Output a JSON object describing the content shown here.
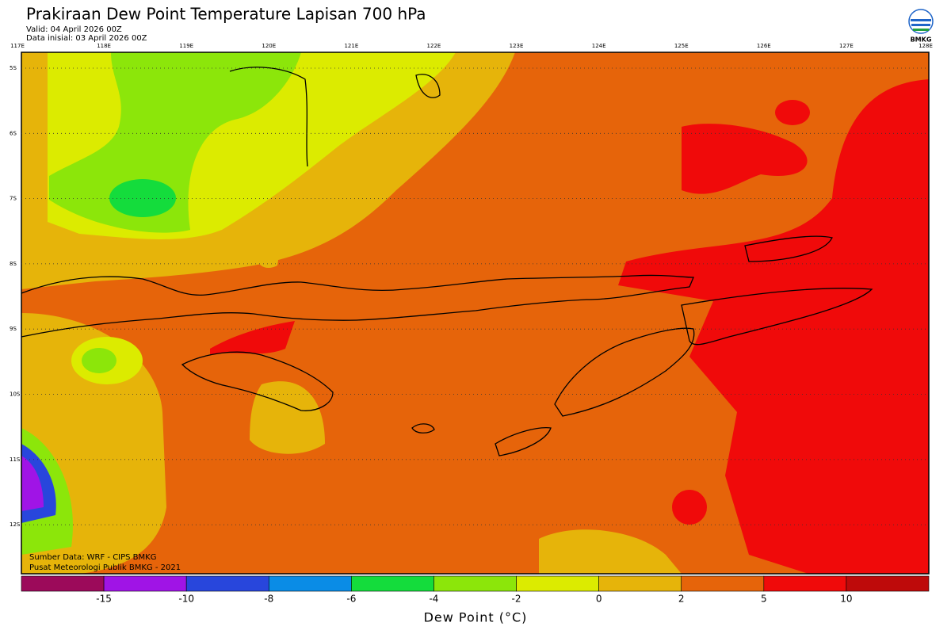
{
  "header": {
    "title": "Prakiraan Dew Point Temperature Lapisan 700 hPa",
    "valid": "Valid: 04 April 2026 00Z",
    "initial": "Data inisial: 03 April 2026 00Z",
    "logo": "BMKG"
  },
  "map": {
    "lon_labels": [
      "117E",
      "118E",
      "119E",
      "120E",
      "121E",
      "122E",
      "123E",
      "124E",
      "125E",
      "126E",
      "127E",
      "128E"
    ],
    "lat_labels": [
      "5S",
      "6S",
      "7S",
      "8S",
      "9S",
      "10S",
      "11S",
      "12S"
    ],
    "source": "Sumber Data: WRF - CIPS BMKG",
    "credit": "Pusat Meteorologi Publik BMKG - 2021"
  },
  "legend": {
    "colors": [
      "#9c0a5a",
      "#a014e6",
      "#2846dc",
      "#0a8ce6",
      "#14dc3c",
      "#8ce60a",
      "#dceb00",
      "#e6b40a",
      "#e6640a",
      "#f00a0a",
      "#be0a0a"
    ],
    "labels": [
      "-15",
      "-10",
      "-8",
      "-6",
      "-4",
      "-2",
      "0",
      "2",
      "5",
      "10"
    ],
    "title": "Dew Point (°C)"
  }
}
